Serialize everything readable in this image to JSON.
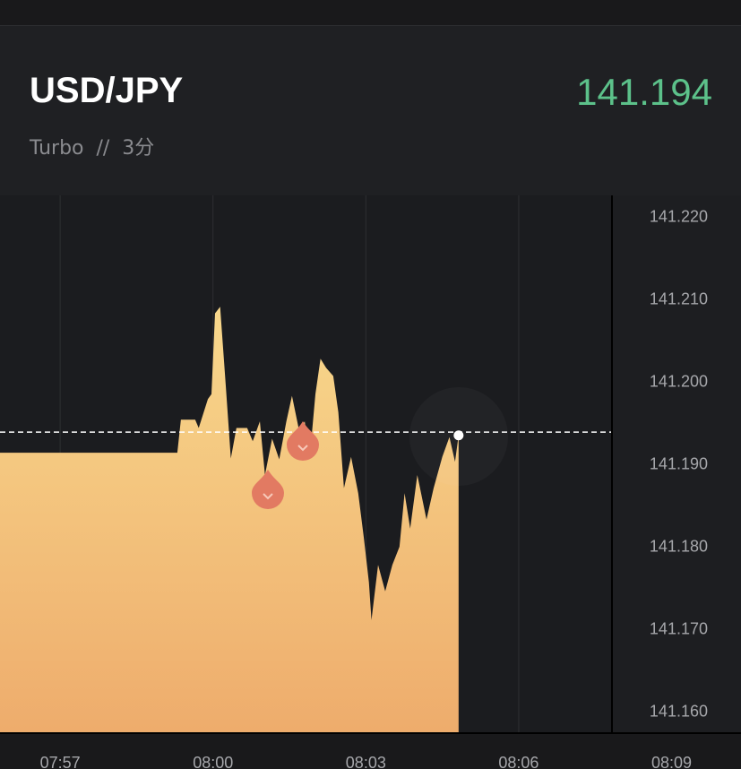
{
  "header": {
    "title": "USD/JPY",
    "subtitle": "Turbo  //  3分",
    "price": "141.194"
  },
  "chart_data": {
    "type": "area",
    "current": 141.194,
    "x": [
      475.82,
      479.3,
      479.37,
      479.65,
      479.72,
      479.9,
      479.97,
      480.04,
      480.14,
      480.25,
      480.35,
      480.46,
      480.67,
      480.78,
      480.92,
      481.02,
      481.16,
      481.3,
      481.44,
      481.55,
      481.69,
      481.8,
      481.9,
      482.01,
      482.11,
      482.22,
      482.36,
      482.46,
      482.57,
      482.71,
      482.85,
      482.96,
      483.06,
      483.11,
      483.24,
      483.38,
      483.52,
      483.66,
      483.76,
      483.87,
      484.01,
      484.19,
      484.33,
      484.5,
      484.64,
      484.75,
      484.82
    ],
    "values": [
      141.1915,
      141.1915,
      141.1955,
      141.1955,
      141.1945,
      141.198,
      141.1986,
      141.2084,
      141.2092,
      141.1997,
      141.1908,
      141.1945,
      141.1945,
      141.1929,
      141.1953,
      141.1888,
      141.1932,
      141.1907,
      141.1953,
      141.1984,
      141.1942,
      141.1953,
      141.191,
      141.1986,
      141.2029,
      141.2018,
      141.2008,
      141.1964,
      141.1872,
      141.191,
      141.1866,
      141.1812,
      141.1758,
      141.1712,
      141.1779,
      141.1747,
      141.1779,
      141.1801,
      141.1866,
      141.1823,
      141.1888,
      141.1834,
      141.1872,
      141.191,
      141.1934,
      141.1904,
      141.1936
    ],
    "xlim": [
      475.82,
      487.83
    ],
    "ylim": [
      141.1575,
      141.2227
    ],
    "xticks": [
      {
        "value": 477,
        "label": "07:57"
      },
      {
        "value": 480,
        "label": "08:00"
      },
      {
        "value": 483,
        "label": "08:03"
      },
      {
        "value": 486,
        "label": "08:06"
      },
      {
        "value": 489,
        "label": "08:09"
      }
    ],
    "yticks": [
      {
        "value": 141.22,
        "label": "141.220"
      },
      {
        "value": 141.21,
        "label": "141.210"
      },
      {
        "value": 141.2,
        "label": "141.200"
      },
      {
        "value": 141.19,
        "label": "141.190"
      },
      {
        "value": 141.18,
        "label": "141.180"
      },
      {
        "value": 141.17,
        "label": "141.170"
      },
      {
        "value": 141.16,
        "label": "141.160"
      }
    ],
    "color_top": "#f8d88c",
    "color_bottom": "#eeac6c"
  }
}
